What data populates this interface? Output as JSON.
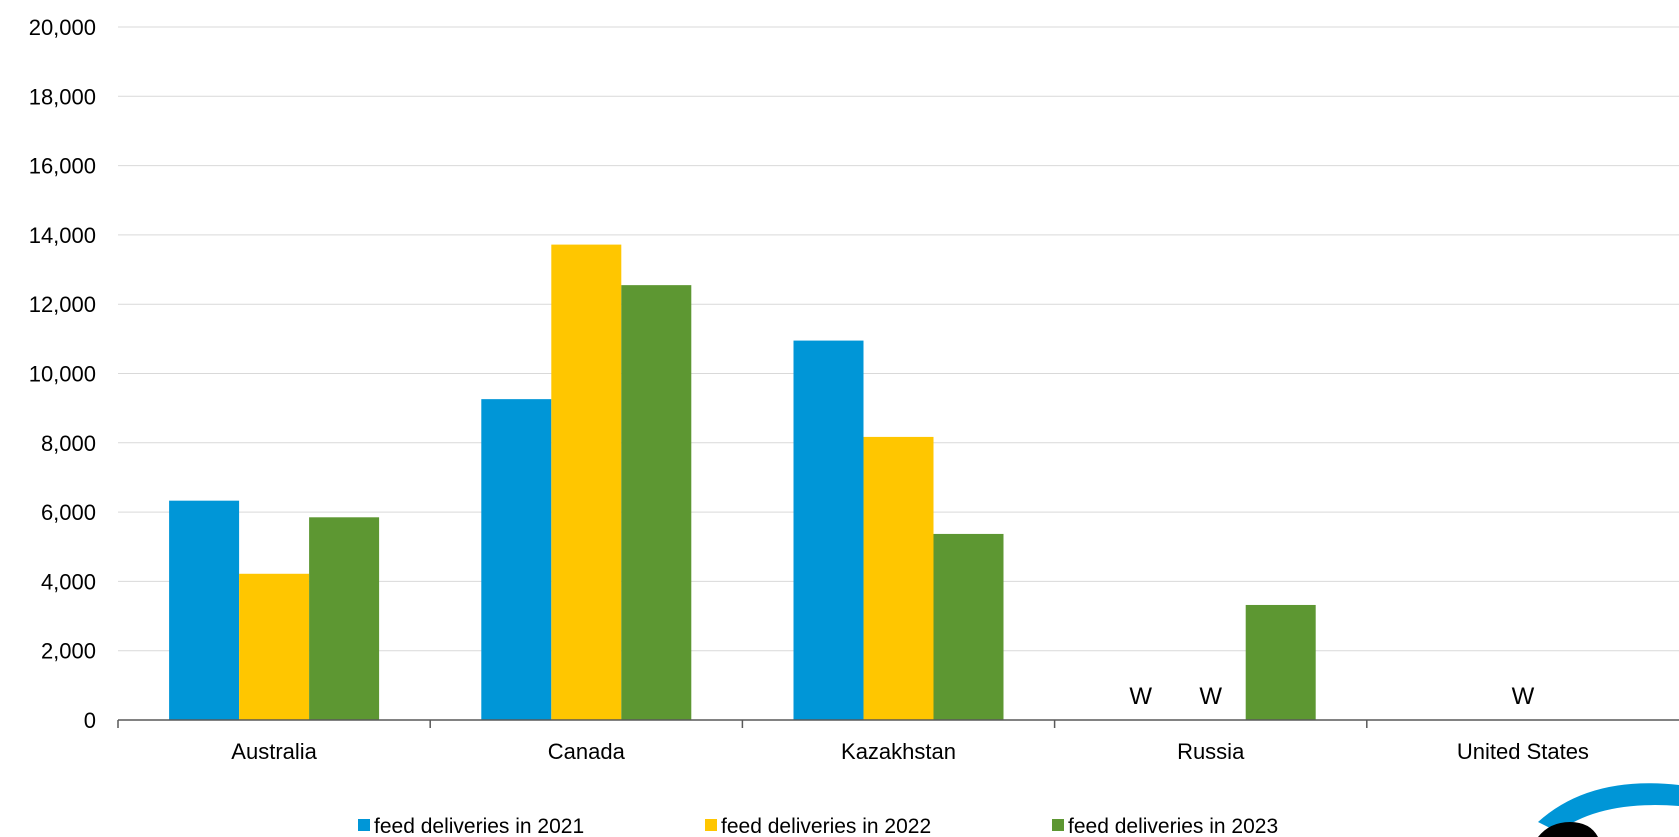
{
  "chart_data": {
    "type": "bar",
    "title": "",
    "xlabel": "",
    "ylabel": "",
    "ylim": [
      0,
      20000
    ],
    "yticks": [
      "0",
      "2,000",
      "4,000",
      "6,000",
      "8,000",
      "10,000",
      "12,000",
      "14,000",
      "16,000",
      "18,000",
      "20,000"
    ],
    "grid": true,
    "legend_position": "bottom",
    "categories": [
      "Australia",
      "Canada",
      "Kazakhstan",
      "Russia",
      "United States"
    ],
    "series": [
      {
        "name": "feed deliveries in 2021",
        "color": "#0096d7",
        "values": [
          6330,
          9260,
          10950,
          null,
          null
        ],
        "labels": [
          "",
          "",
          "",
          "W",
          ""
        ]
      },
      {
        "name": "feed deliveries in 2022",
        "color": "#ffc600",
        "values": [
          4220,
          13720,
          8170,
          null,
          null
        ],
        "labels": [
          "",
          "",
          "",
          "W",
          "W"
        ]
      },
      {
        "name": "feed deliveries in 2023",
        "color": "#5d9732",
        "values": [
          5850,
          12550,
          5370,
          3320,
          null
        ],
        "labels": [
          "",
          "",
          "",
          "",
          ""
        ]
      }
    ]
  },
  "colors": {
    "grid": "#d9d9d9",
    "axis": "#595959",
    "logo": "#0096d7"
  },
  "logo": {
    "icon": "eia-logo",
    "text": "eia"
  }
}
